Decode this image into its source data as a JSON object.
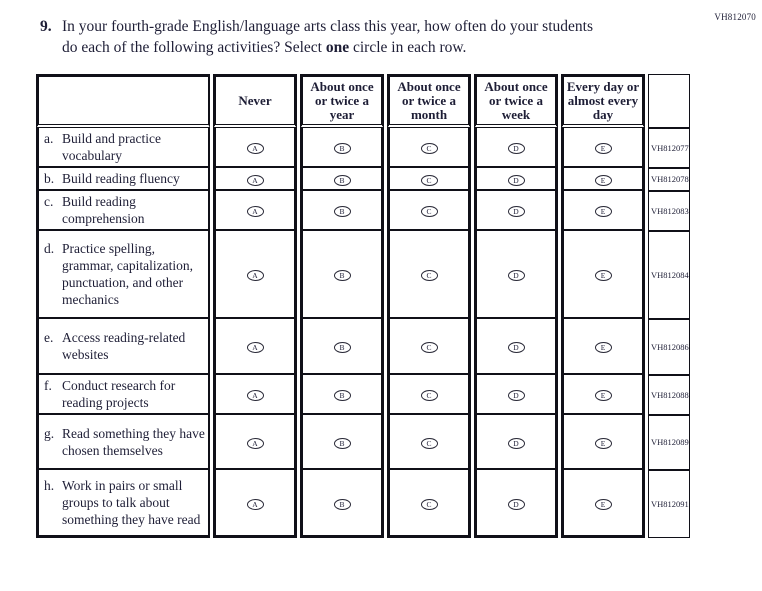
{
  "page": {
    "form_code": "VH812070"
  },
  "question": {
    "number": "9.",
    "line1": "In your fourth-grade English/language arts class this year, how often do your students",
    "line2_before": "do each of the following activities? Select ",
    "line2_bold": "one",
    "line2_after": " circle in each row."
  },
  "table": {
    "columns": [
      "Never",
      "About once or twice a year",
      "About once or twice a month",
      "About once or twice a week",
      "Every day or almost every day"
    ],
    "option_letters": [
      "A",
      "B",
      "C",
      "D",
      "E"
    ],
    "rows": [
      {
        "letter": "a.",
        "label": "Build and practice vocabulary",
        "code": "VH812077"
      },
      {
        "letter": "b.",
        "label": "Build reading fluency",
        "code": "VH812078"
      },
      {
        "letter": "c.",
        "label": "Build reading comprehension",
        "code": "VH812083"
      },
      {
        "letter": "d.",
        "label": "Practice spelling, grammar, capitalization, punctuation, and other mechanics",
        "code": "VH812084"
      },
      {
        "letter": "e.",
        "label": "Access reading-related websites",
        "code": "VH812086"
      },
      {
        "letter": "f.",
        "label": "Conduct research for reading projects",
        "code": "VH812088"
      },
      {
        "letter": "g.",
        "label": "Read something they have chosen themselves",
        "code": "VH812089"
      },
      {
        "letter": "h.",
        "label": "Work in pairs or small groups to talk about something they have read",
        "code": "VH812091"
      }
    ]
  }
}
